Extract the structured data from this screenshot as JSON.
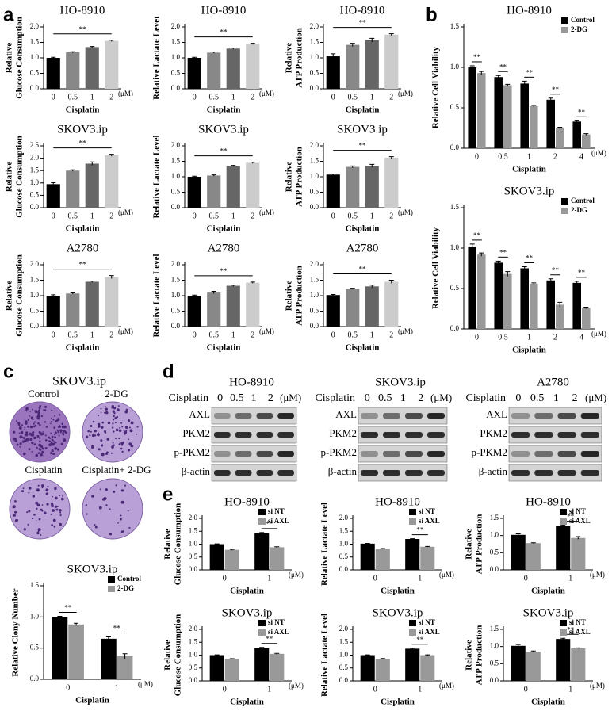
{
  "panel_labels": [
    "a",
    "b",
    "c",
    "d",
    "e"
  ],
  "colony_assay": {
    "title": "SKOV3.ip",
    "labels": [
      "Control",
      "2-DG",
      "Cisplatin",
      "Cisplatin+ 2-DG"
    ]
  },
  "western_blots": {
    "xlabel": "Cisplatin",
    "lanes": [
      "0",
      "0.5",
      "1",
      "2"
    ],
    "unit": "(μM)",
    "rows": [
      "AXL",
      "PKM2",
      "p-PKM2",
      "β-actin"
    ],
    "panels": [
      {
        "title": "HO-8910"
      },
      {
        "title": "SKOV3.ip"
      },
      {
        "title": "A2780"
      }
    ]
  },
  "chart_data": [
    {
      "type": "bar",
      "title": "HO-8910",
      "ylabel": [
        "Relative",
        "Glucose Consumption"
      ],
      "xlabel": "Cisplatin",
      "x_unit": "(μM)",
      "categories": [
        "0",
        "0.5",
        "1",
        "2"
      ],
      "values": [
        1.0,
        1.18,
        1.35,
        1.55
      ],
      "errors": [
        0.02,
        0.02,
        0.02,
        0.02
      ],
      "colors": [
        "#000000",
        "#888888",
        "#666666",
        "#cccccc"
      ],
      "ylim": [
        0,
        2
      ],
      "yticks": [
        {
          "value": 0,
          "label": "0.0"
        },
        0.5,
        {
          "value": 1,
          "label": "1.0"
        },
        1.5,
        {
          "value": 2,
          "label": "2.0"
        }
      ],
      "annotation": "**"
    },
    {
      "type": "bar",
      "title": "HO-8910",
      "ylabel": [
        "Relative Lactate Levet"
      ],
      "xlabel": "Cisplatin",
      "x_unit": "(μM)",
      "categories": [
        "0",
        "0.5",
        "1",
        "2"
      ],
      "values": [
        1.0,
        1.17,
        1.3,
        1.45
      ],
      "errors": [
        0.02,
        0.02,
        0.02,
        0.02
      ],
      "colors": [
        "#000000",
        "#888888",
        "#666666",
        "#cccccc"
      ],
      "ylim": [
        0,
        2
      ],
      "yticks": [
        {
          "value": 0,
          "label": "0.0"
        },
        0.5,
        {
          "value": 1,
          "label": "1.0"
        },
        1.5,
        {
          "value": 2,
          "label": "2.0"
        }
      ],
      "annotation": "**"
    },
    {
      "type": "bar",
      "title": "HO-8910",
      "ylabel": [
        "Relative",
        "ATP Production"
      ],
      "xlabel": "Cisplatin",
      "x_unit": "(μM)",
      "categories": [
        "0",
        "0.5",
        "1",
        "2"
      ],
      "values": [
        1.05,
        1.42,
        1.57,
        1.75
      ],
      "errors": [
        0.08,
        0.05,
        0.06,
        0.03
      ],
      "colors": [
        "#000000",
        "#888888",
        "#666666",
        "#cccccc"
      ],
      "ylim": [
        0,
        2
      ],
      "yticks": [
        {
          "value": 0,
          "label": "0.0"
        },
        0.5,
        {
          "value": 1,
          "label": "1.0"
        },
        1.5,
        {
          "value": 2,
          "label": "2.0"
        }
      ],
      "annotation": "**"
    },
    {
      "type": "bar",
      "title": "SKOV3.ip",
      "ylabel": [
        "Relative",
        "Glucose Consumption"
      ],
      "xlabel": "Cisplatin",
      "x_unit": "(μM)",
      "categories": [
        "0",
        "0.5",
        "1",
        "2"
      ],
      "values": [
        0.95,
        1.5,
        1.78,
        2.12
      ],
      "errors": [
        0.06,
        0.03,
        0.07,
        0.04
      ],
      "colors": [
        "#000000",
        "#888888",
        "#666666",
        "#cccccc"
      ],
      "ylim": [
        0,
        2.5
      ],
      "yticks": [
        {
          "value": 0,
          "label": "0.0"
        },
        0.5,
        {
          "value": 1,
          "label": "1.0"
        },
        1.5,
        {
          "value": 2,
          "label": "2.0"
        },
        2.5
      ],
      "annotation": "**"
    },
    {
      "type": "bar",
      "title": "SKOV3.ip",
      "ylabel": [
        "Relative Lactate Level"
      ],
      "xlabel": "Cisplatin",
      "x_unit": "(μM)",
      "categories": [
        "0",
        "0.5",
        "1",
        "2"
      ],
      "values": [
        1.0,
        1.04,
        1.35,
        1.45
      ],
      "errors": [
        0.02,
        0.02,
        0.02,
        0.02
      ],
      "colors": [
        "#000000",
        "#888888",
        "#666666",
        "#cccccc"
      ],
      "ylim": [
        0,
        2
      ],
      "yticks": [
        {
          "value": 0,
          "label": "0.0"
        },
        0.5,
        {
          "value": 1,
          "label": "1.0"
        },
        1.5,
        {
          "value": 2,
          "label": "2.0"
        }
      ],
      "annotation": "**"
    },
    {
      "type": "bar",
      "title": "SKOV3.ip",
      "ylabel": [
        "Relative",
        "ATP Production"
      ],
      "xlabel": "Cisplatin",
      "x_unit": "(μM)",
      "categories": [
        "0",
        "0.5",
        "1",
        "2"
      ],
      "values": [
        1.07,
        1.32,
        1.35,
        1.62
      ],
      "errors": [
        0.02,
        0.03,
        0.05,
        0.03
      ],
      "colors": [
        "#000000",
        "#888888",
        "#666666",
        "#cccccc"
      ],
      "ylim": [
        0,
        2
      ],
      "yticks": [
        {
          "value": 0,
          "label": "0.0"
        },
        0.5,
        {
          "value": 1,
          "label": "1.0"
        },
        1.5,
        {
          "value": 2,
          "label": "2.0"
        }
      ],
      "annotation": "**"
    },
    {
      "type": "bar",
      "title": "A2780",
      "ylabel": [
        "Relative",
        "Glucose Consumption"
      ],
      "xlabel": "Cisplatin",
      "x_unit": "(μM)",
      "categories": [
        "0",
        "0.5",
        "1",
        "2"
      ],
      "values": [
        1.0,
        1.07,
        1.45,
        1.6
      ],
      "errors": [
        0.03,
        0.02,
        0.02,
        0.05
      ],
      "colors": [
        "#000000",
        "#888888",
        "#666666",
        "#cccccc"
      ],
      "ylim": [
        0,
        2
      ],
      "yticks": [
        {
          "value": 0,
          "label": "0.0"
        },
        0.5,
        {
          "value": 1,
          "label": "1.0"
        },
        1.5,
        {
          "value": 2,
          "label": "2.0"
        }
      ],
      "annotation": "**"
    },
    {
      "type": "bar",
      "title": "A2780",
      "ylabel": [
        "Relative Lactate Level"
      ],
      "xlabel": "Cisplatin",
      "x_unit": "(μM)",
      "categories": [
        "0",
        "0.5",
        "1",
        "2"
      ],
      "values": [
        1.0,
        1.1,
        1.32,
        1.42
      ],
      "errors": [
        0.02,
        0.04,
        0.02,
        0.02
      ],
      "colors": [
        "#000000",
        "#888888",
        "#666666",
        "#cccccc"
      ],
      "ylim": [
        0,
        2
      ],
      "yticks": [
        {
          "value": 0,
          "label": "0.0"
        },
        0.5,
        {
          "value": 1,
          "label": "1.0"
        },
        1.5,
        {
          "value": 2,
          "label": "2.0"
        }
      ],
      "annotation": "**"
    },
    {
      "type": "bar",
      "title": "A2780",
      "ylabel": [
        "Relative",
        "ATP Production"
      ],
      "xlabel": "Cisplatin",
      "x_unit": "(μM)",
      "categories": [
        "0",
        "0.5",
        "1",
        "2"
      ],
      "values": [
        1.02,
        1.22,
        1.3,
        1.45
      ],
      "errors": [
        0.02,
        0.02,
        0.04,
        0.05
      ],
      "colors": [
        "#000000",
        "#888888",
        "#666666",
        "#cccccc"
      ],
      "ylim": [
        0,
        2
      ],
      "yticks": [
        {
          "value": 0,
          "label": "0.0"
        },
        0.5,
        {
          "value": 1,
          "label": "1.0"
        },
        1.5,
        {
          "value": 2,
          "label": "2.0"
        }
      ],
      "annotation": "**"
    },
    {
      "type": "grouped_bar",
      "title": "HO-8910",
      "ylabel": [
        "Relative Cell Viability"
      ],
      "xlabel": "Cisplatin",
      "x_unit": "(μM)",
      "categories": [
        "0",
        "0.5",
        "1",
        "2",
        "4"
      ],
      "series": [
        {
          "name": "Control",
          "color": "#000000",
          "values": [
            1.0,
            0.88,
            0.8,
            0.6,
            0.33
          ],
          "errors": [
            0.02,
            0.02,
            0.03,
            0.02,
            0.01
          ]
        },
        {
          "name": "2-DG",
          "color": "#999999",
          "values": [
            0.93,
            0.78,
            0.52,
            0.25,
            0.17
          ],
          "errors": [
            0.02,
            0.01,
            0.01,
            0.01,
            0.01
          ]
        }
      ],
      "annotations": [
        "**",
        "**",
        "**",
        "**",
        "**"
      ],
      "legend": "upper right",
      "ylim": [
        0,
        1.5
      ],
      "yticks": [
        {
          "value": 0,
          "label": "0.0"
        },
        0.5,
        {
          "value": 1,
          "label": "1.0"
        },
        1.5
      ]
    },
    {
      "type": "grouped_bar",
      "title": "SKOV3.ip",
      "ylabel": [
        "Relative Cell Viability"
      ],
      "xlabel": "Cisplatin",
      "x_unit": "(μM)",
      "categories": [
        "0",
        "0.5",
        "1",
        "2",
        "4"
      ],
      "series": [
        {
          "name": "Control",
          "color": "#000000",
          "values": [
            1.02,
            0.82,
            0.75,
            0.6,
            0.57
          ],
          "errors": [
            0.03,
            0.02,
            0.02,
            0.02,
            0.02
          ]
        },
        {
          "name": "2-DG",
          "color": "#999999",
          "values": [
            0.92,
            0.68,
            0.56,
            0.3,
            0.26
          ],
          "errors": [
            0.02,
            0.03,
            0.01,
            0.03,
            0.01
          ]
        }
      ],
      "annotations": [
        "**",
        "**",
        "**",
        "**",
        "**"
      ],
      "legend": "upper right",
      "ylim": [
        0,
        1.5
      ],
      "yticks": [
        {
          "value": 0,
          "label": "0.0"
        },
        0.5,
        {
          "value": 1,
          "label": "1.0"
        },
        1.5
      ]
    },
    {
      "type": "grouped_bar",
      "title": "SKOV3.ip",
      "ylabel": [
        "Relative Clony Number"
      ],
      "xlabel": "Cisplatin",
      "x_unit": "(μM)",
      "categories": [
        "0",
        "1"
      ],
      "series": [
        {
          "name": "Control",
          "color": "#000000",
          "values": [
            1.0,
            0.65
          ],
          "errors": [
            0.01,
            0.03
          ]
        },
        {
          "name": "2-DG",
          "color": "#999999",
          "values": [
            0.88,
            0.37
          ],
          "errors": [
            0.02,
            0.04
          ]
        }
      ],
      "annotations": [
        "**",
        "**"
      ],
      "legend": "upper right",
      "ylim": [
        0,
        1.5
      ],
      "yticks": [
        {
          "value": 0,
          "label": "0.0"
        },
        0.5,
        {
          "value": 1,
          "label": "1.0"
        },
        1.5
      ]
    },
    {
      "type": "grouped_bar",
      "title": "HO-8910",
      "ylabel": [
        "Relative",
        "Glucose Consumption"
      ],
      "xlabel": "Cisplatin",
      "x_unit": "(μM)",
      "categories": [
        "0",
        "1"
      ],
      "series": [
        {
          "name": "si NT",
          "color": "#000000",
          "values": [
            1.0,
            1.43
          ],
          "errors": [
            0.01,
            0.02
          ]
        },
        {
          "name": "si AXL",
          "color": "#999999",
          "values": [
            0.78,
            0.88
          ],
          "errors": [
            0.02,
            0.02
          ]
        }
      ],
      "annotations": [
        null,
        "**"
      ],
      "legend": "upper right",
      "ylim": [
        0,
        2
      ],
      "yticks": [
        {
          "value": 0,
          "label": "0.0"
        },
        0.5,
        {
          "value": 1,
          "label": "1.0"
        },
        1.5,
        {
          "value": 2,
          "label": "2.0"
        }
      ]
    },
    {
      "type": "grouped_bar",
      "title": "HO-8910",
      "ylabel": [
        "Relative Lactate Level"
      ],
      "xlabel": "Cisplatin",
      "x_unit": "(μM)",
      "categories": [
        "0",
        "1"
      ],
      "series": [
        {
          "name": "si NT",
          "color": "#000000",
          "values": [
            1.02,
            1.2
          ],
          "errors": [
            0.01,
            0.01
          ]
        },
        {
          "name": "si AXL",
          "color": "#999999",
          "values": [
            0.82,
            0.9
          ],
          "errors": [
            0.01,
            0.01
          ]
        }
      ],
      "annotations": [
        null,
        "**"
      ],
      "legend": "upper right",
      "ylim": [
        0,
        2
      ],
      "yticks": [
        {
          "value": 0,
          "label": "0.0"
        },
        0.5,
        {
          "value": 1,
          "label": "1.0"
        },
        1.5,
        {
          "value": 2,
          "label": "2.0"
        }
      ]
    },
    {
      "type": "grouped_bar",
      "title": "HO-8910",
      "ylabel": [
        "Relative",
        "ATP Production"
      ],
      "xlabel": "Cisplatin",
      "x_unit": "(μM)",
      "categories": [
        "0",
        "1"
      ],
      "series": [
        {
          "name": "si NT",
          "color": "#000000",
          "values": [
            1.02,
            1.27
          ],
          "errors": [
            0.03,
            0.03
          ]
        },
        {
          "name": "si AXL",
          "color": "#999999",
          "values": [
            0.78,
            0.93
          ],
          "errors": [
            0.01,
            0.04
          ]
        }
      ],
      "annotations": [
        null,
        "**"
      ],
      "legend": "upper right",
      "ylim": [
        0,
        1.5
      ],
      "yticks": [
        {
          "value": 0,
          "label": "0.0"
        },
        0.5,
        {
          "value": 1,
          "label": "1.0"
        },
        1.5
      ]
    },
    {
      "type": "grouped_bar",
      "title": "SKOV3.ip",
      "ylabel": [
        "Relative",
        "Glucose Consumption"
      ],
      "xlabel": "Cisplatin",
      "x_unit": "(μM)",
      "categories": [
        "0",
        "1"
      ],
      "series": [
        {
          "name": "si NT",
          "color": "#000000",
          "values": [
            1.0,
            1.27
          ],
          "errors": [
            0.01,
            0.03
          ]
        },
        {
          "name": "si AXL",
          "color": "#999999",
          "values": [
            0.85,
            1.05
          ],
          "errors": [
            0.01,
            0.02
          ]
        }
      ],
      "annotations": [
        null,
        "**"
      ],
      "legend": "upper right",
      "ylim": [
        0,
        2
      ],
      "yticks": [
        {
          "value": 0,
          "label": "0.0"
        },
        0.5,
        {
          "value": 1,
          "label": "1.0"
        },
        1.5,
        {
          "value": 2,
          "label": "2.0"
        }
      ]
    },
    {
      "type": "grouped_bar",
      "title": "SKOV3.ip",
      "ylabel": [
        "Relative Lactate Level"
      ],
      "xlabel": "Cisplatin",
      "x_unit": "(μM)",
      "categories": [
        "0",
        "1"
      ],
      "series": [
        {
          "name": "si NT",
          "color": "#000000",
          "values": [
            1.0,
            1.25
          ],
          "errors": [
            0.01,
            0.02
          ]
        },
        {
          "name": "si AXL",
          "color": "#999999",
          "values": [
            0.86,
            1.0
          ],
          "errors": [
            0.01,
            0.01
          ]
        }
      ],
      "annotations": [
        null,
        "**"
      ],
      "legend": "upper right",
      "ylim": [
        0,
        2
      ],
      "yticks": [
        {
          "value": 0,
          "label": "0.0"
        },
        0.5,
        {
          "value": 1,
          "label": "1.0"
        },
        1.5,
        {
          "value": 2,
          "label": "2.0"
        }
      ]
    },
    {
      "type": "grouped_bar",
      "title": "SKOV3.ip",
      "ylabel": [
        "Relative",
        "ATP Production"
      ],
      "xlabel": "Cisplatin",
      "x_unit": "(μM)",
      "categories": [
        "0",
        "1"
      ],
      "series": [
        {
          "name": "si NT",
          "color": "#000000",
          "values": [
            1.02,
            1.22
          ],
          "errors": [
            0.04,
            0.02
          ]
        },
        {
          "name": "si AXL",
          "color": "#999999",
          "values": [
            0.85,
            0.95
          ],
          "errors": [
            0.02,
            0.01
          ]
        }
      ],
      "annotations": [
        null,
        "**"
      ],
      "legend": "upper right",
      "ylim": [
        0,
        1.5
      ],
      "yticks": [
        {
          "value": 0,
          "label": "0.0"
        },
        0.5,
        {
          "value": 1,
          "label": "1.0"
        },
        1.5
      ]
    }
  ]
}
